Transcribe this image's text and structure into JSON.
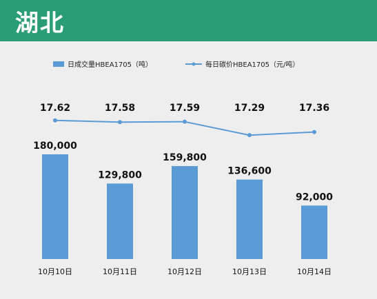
{
  "header": {
    "title": "湖北"
  },
  "colors": {
    "header_bg": "#2a9c76",
    "panel_bg": "#eeeeee",
    "bar": "#5b9bd5",
    "line": "#5b9bd5"
  },
  "chart_data": {
    "type": "bar+line",
    "categories": [
      "10月10日",
      "10月11日",
      "10月12日",
      "10月13日",
      "10月14日"
    ],
    "series": [
      {
        "name": "日成交量HBEA1705（吨）",
        "type": "bar",
        "values": [
          180000,
          129800,
          159800,
          136600,
          92000
        ],
        "labels": [
          "180,000",
          "129,800",
          "159,800",
          "136,600",
          "92,000"
        ]
      },
      {
        "name": "每日碳价HBEA1705（元/吨）",
        "type": "line",
        "values": [
          17.62,
          17.58,
          17.59,
          17.29,
          17.36
        ],
        "labels": [
          "17.62",
          "17.58",
          "17.59",
          "17.29",
          "17.36"
        ]
      }
    ],
    "legend": "top",
    "grid": false
  }
}
